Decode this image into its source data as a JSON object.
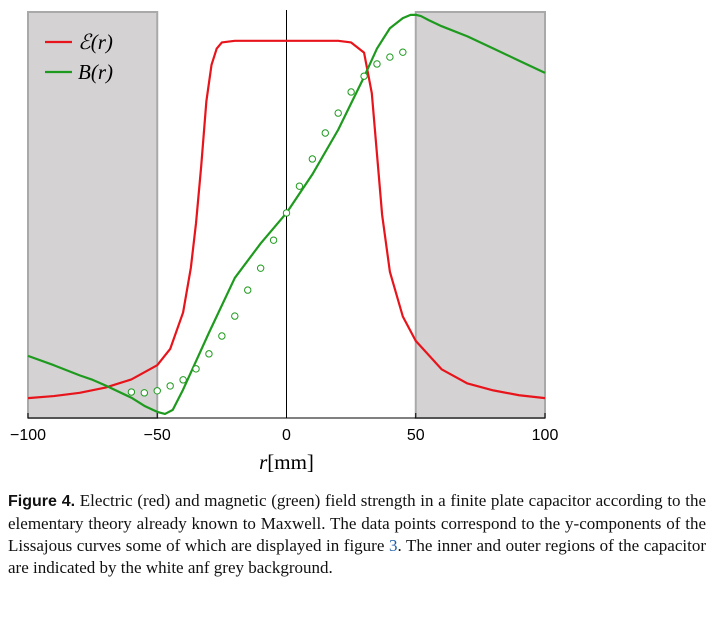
{
  "chart_data": {
    "type": "line",
    "xlim": [
      -100,
      100
    ],
    "ylim": [
      0,
      1
    ],
    "xticks": [
      {
        "value": -100,
        "label": "−100"
      },
      {
        "value": -50,
        "label": "−50"
      },
      0,
      50,
      100
    ],
    "xlabel": [
      "r",
      "[mm]"
    ],
    "shaded_regions": [
      [
        -100,
        -50
      ],
      [
        50,
        100
      ]
    ],
    "series": [
      {
        "name": "ℰ(r)",
        "color": "#e8141b",
        "style": "line",
        "x": [
          -100,
          -90,
          -80,
          -70,
          -60,
          -50,
          -45,
          -40,
          -37,
          -35,
          -33,
          -31,
          -29,
          -27,
          -25,
          -20,
          0,
          20,
          25,
          30,
          33,
          35,
          37,
          40,
          45,
          50,
          60,
          70,
          80,
          90,
          100
        ],
        "values": [
          0.049,
          0.054,
          0.062,
          0.075,
          0.095,
          0.13,
          0.17,
          0.26,
          0.37,
          0.48,
          0.62,
          0.78,
          0.87,
          0.91,
          0.925,
          0.929,
          0.929,
          0.929,
          0.925,
          0.9,
          0.8,
          0.65,
          0.5,
          0.36,
          0.25,
          0.19,
          0.12,
          0.085,
          0.068,
          0.056,
          0.049
        ]
      },
      {
        "name": "B(r)",
        "color": "#1e9a1e",
        "style": "line",
        "x": [
          -100,
          -90,
          -80,
          -75,
          -70,
          -60,
          -55,
          -50,
          -47,
          -44,
          -40,
          -35,
          -30,
          -20,
          -10,
          0,
          10,
          20,
          30,
          35,
          40,
          45,
          48,
          50,
          52,
          55,
          60,
          70,
          80,
          90,
          100
        ],
        "values": [
          0.153,
          0.13,
          0.105,
          0.094,
          0.08,
          0.05,
          0.03,
          0.015,
          0.01,
          0.02,
          0.07,
          0.14,
          0.21,
          0.345,
          0.43,
          0.505,
          0.6,
          0.71,
          0.84,
          0.91,
          0.96,
          0.985,
          0.993,
          0.993,
          0.99,
          0.98,
          0.965,
          0.94,
          0.91,
          0.88,
          0.85
        ]
      },
      {
        "color": "#1e9a1e",
        "style": "markers",
        "x": [
          -60,
          -55,
          -50,
          -45,
          -40,
          -35,
          -30,
          -25,
          -20,
          -15,
          -10,
          -5,
          0,
          5,
          10,
          15,
          20,
          25,
          30,
          35,
          40,
          45
        ],
        "values": [
          0.064,
          0.062,
          0.067,
          0.079,
          0.094,
          0.121,
          0.158,
          0.202,
          0.251,
          0.315,
          0.369,
          0.438,
          0.505,
          0.571,
          0.638,
          0.702,
          0.751,
          0.803,
          0.842,
          0.872,
          0.889,
          0.901
        ]
      }
    ]
  },
  "caption": {
    "label": "Figure 4.",
    "text_before": " Electric (red) and magnetic (green) field strength in a finite plate capacitor according to the elementary theory already known to Maxwell. The data points correspond to the y-components of the Lissajous curves some of which are displayed in figure ",
    "link": "3",
    "text_after": ". The inner and outer regions of the capacitor are indicated by the white anf grey background."
  }
}
